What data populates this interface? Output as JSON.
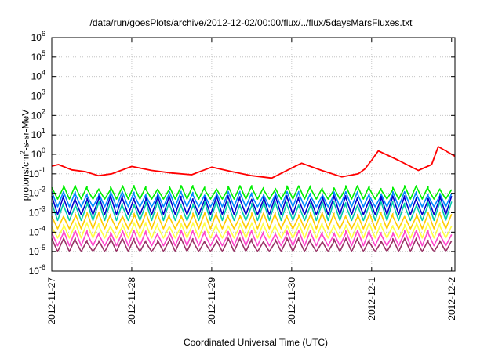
{
  "chart_data": {
    "type": "line",
    "title": "/data/run/goesPlots/archive/2012-12-02/00:00/flux/../flux/5daysMarsFluxes.txt",
    "xlabel": "Coordinated Universal Time (UTC)",
    "ylabel_main": "protons/cm",
    "ylabel_sup": "2",
    "ylabel_rest": "-s-sr-MeV",
    "xlim": [
      "2012-11-27",
      "2012-12-02"
    ],
    "ylim": [
      1e-06,
      1000000.0
    ],
    "yscale": "log",
    "grid": true,
    "x_ticks": [
      "2012-11-27",
      "2012-11-28",
      "2012-11-29",
      "2012-11-30",
      "2012-12-1",
      "2012-12-2"
    ],
    "y_ticks": [
      {
        "base": "10",
        "exp": "-6",
        "value": 1e-06
      },
      {
        "base": "10",
        "exp": "-5",
        "value": 1e-05
      },
      {
        "base": "10",
        "exp": "-4",
        "value": 0.0001
      },
      {
        "base": "10",
        "exp": "-3",
        "value": 0.001
      },
      {
        "base": "10",
        "exp": "-2",
        "value": 0.01
      },
      {
        "base": "10",
        "exp": "-1",
        "value": 0.1
      },
      {
        "base": "10",
        "exp": "0",
        "value": 1
      },
      {
        "base": "10",
        "exp": "1",
        "value": 10
      },
      {
        "base": "10",
        "exp": "2",
        "value": 100
      },
      {
        "base": "10",
        "exp": "3",
        "value": 1000
      },
      {
        "base": "10",
        "exp": "4",
        "value": 10000
      },
      {
        "base": "10",
        "exp": "5",
        "value": 100000
      },
      {
        "base": "10",
        "exp": "6",
        "value": 1000000
      }
    ],
    "series": [
      {
        "color": "#ff0000",
        "x": [
          "2012-11-27 00:00",
          "2012-11-27 02:00",
          "2012-11-27 04:00",
          "2012-11-27 06:00",
          "2012-11-27 08:00",
          "2012-11-27 10:00",
          "2012-11-27 12:00",
          "2012-11-27 14:00",
          "2012-11-27 16:00",
          "2012-11-27 18:00",
          "2012-11-27 20:00",
          "2012-11-27 22:00",
          "2012-11-28 00:00",
          "2012-11-28 02:00",
          "2012-11-28 04:00",
          "2012-11-28 06:00",
          "2012-11-28 08:00",
          "2012-11-28 10:00",
          "2012-11-28 12:00",
          "2012-11-28 14:00",
          "2012-11-28 16:00",
          "2012-11-28 18:00",
          "2012-11-28 20:00",
          "2012-11-28 22:00",
          "2012-11-29 00:00",
          "2012-11-29 02:00",
          "2012-11-29 04:00",
          "2012-11-29 06:00",
          "2012-11-29 08:00",
          "2012-11-29 10:00",
          "2012-11-29 12:00",
          "2012-11-29 14:00",
          "2012-11-29 16:00",
          "2012-11-29 18:00",
          "2012-11-29 20:00",
          "2012-11-29 22:00",
          "2012-11-30 00:00",
          "2012-11-30 02:00",
          "2012-11-30 04:00",
          "2012-11-30 06:00",
          "2012-11-30 08:00",
          "2012-11-30 10:00",
          "2012-11-30 12:00",
          "2012-11-30 14:00",
          "2012-11-30 16:00",
          "2012-11-30 18:00",
          "2012-11-30 20:00",
          "2012-11-30 22:00",
          "2012-12-01 00:00",
          "2012-12-01 02:00",
          "2012-12-01 04:00",
          "2012-12-01 06:00",
          "2012-12-01 08:00",
          "2012-12-01 10:00",
          "2012-12-01 12:00",
          "2012-12-01 14:00",
          "2012-12-01 16:00",
          "2012-12-01 18:00",
          "2012-12-01 20:00",
          "2012-12-01 22:00",
          "2012-12-02 00:00",
          "2012-12-02 01:00"
        ],
        "y": [
          0.25,
          0.3,
          0.2,
          0.15,
          0.1,
          0.14,
          0.1,
          0.08,
          0.13,
          0.1,
          0.18,
          0.12,
          0.25,
          0.18,
          0.22,
          0.15,
          0.12,
          0.14,
          0.1,
          0.11,
          0.09,
          0.12,
          0.08,
          0.15,
          0.25,
          0.16,
          0.12,
          0.17,
          0.09,
          0.11,
          0.08,
          0.06,
          0.09,
          0.07,
          0.12,
          0.08,
          0.22,
          0.15,
          0.35,
          0.2,
          0.12,
          0.1,
          0.08,
          0.06,
          0.09,
          0.07,
          0.12,
          0.09,
          0.25,
          0.18,
          0.12,
          0.09,
          0.12,
          0.15,
          0.1,
          0.07,
          0.11,
          0.08,
          0.12,
          0.09,
          0.15,
          0.12
        ]
      }
    ],
    "dense_series": [
      {
        "color": "#00ee00",
        "low": 0.005,
        "high": 0.02
      },
      {
        "color": "#0088ff",
        "low": 0.002,
        "high": 0.01
      },
      {
        "color": "#0000cc",
        "low": 0.0008,
        "high": 0.006
      },
      {
        "color": "#00ccaa",
        "low": 0.0004,
        "high": 0.003
      },
      {
        "color": "#ffcc00",
        "low": 0.00015,
        "high": 0.0008
      },
      {
        "color": "#ffff44",
        "low": 5e-05,
        "high": 0.00025
      },
      {
        "color": "#ff44cc",
        "low": 2e-05,
        "high": 0.0001
      },
      {
        "color": "#993366",
        "low": 1e-05,
        "high": 4e-05
      }
    ],
    "red_trend": [
      {
        "x": "2012-11-27 00:00",
        "y": 0.25
      },
      {
        "x": "2012-11-27 02:00",
        "y": 0.3
      },
      {
        "x": "2012-11-27 06:00",
        "y": 0.16
      },
      {
        "x": "2012-11-27 10:00",
        "y": 0.13
      },
      {
        "x": "2012-11-27 14:00",
        "y": 0.08
      },
      {
        "x": "2012-11-27 18:00",
        "y": 0.1
      },
      {
        "x": "2012-11-28 00:00",
        "y": 0.24
      },
      {
        "x": "2012-11-28 06:00",
        "y": 0.15
      },
      {
        "x": "2012-11-28 12:00",
        "y": 0.11
      },
      {
        "x": "2012-11-28 18:00",
        "y": 0.09
      },
      {
        "x": "2012-11-29 00:00",
        "y": 0.22
      },
      {
        "x": "2012-11-29 06:00",
        "y": 0.13
      },
      {
        "x": "2012-11-29 12:00",
        "y": 0.08
      },
      {
        "x": "2012-11-29 18:00",
        "y": 0.06
      },
      {
        "x": "2012-11-30 00:00",
        "y": 0.2
      },
      {
        "x": "2012-11-30 03:00",
        "y": 0.35
      },
      {
        "x": "2012-11-30 09:00",
        "y": 0.15
      },
      {
        "x": "2012-11-30 15:00",
        "y": 0.07
      },
      {
        "x": "2012-11-30 20:00",
        "y": 0.1
      },
      {
        "x": "2012-11-30 22:00",
        "y": 0.18
      },
      {
        "x": "2012-12-01 00:00",
        "y": 0.5
      },
      {
        "x": "2012-12-01 02:00",
        "y": 1.5
      },
      {
        "x": "2012-12-01 08:00",
        "y": 0.5
      },
      {
        "x": "2012-12-01 14:00",
        "y": 0.15
      },
      {
        "x": "2012-12-01 18:00",
        "y": 0.3
      },
      {
        "x": "2012-12-01 20:00",
        "y": 2.5
      },
      {
        "x": "2012-12-02 01:00",
        "y": 0.8
      }
    ]
  }
}
